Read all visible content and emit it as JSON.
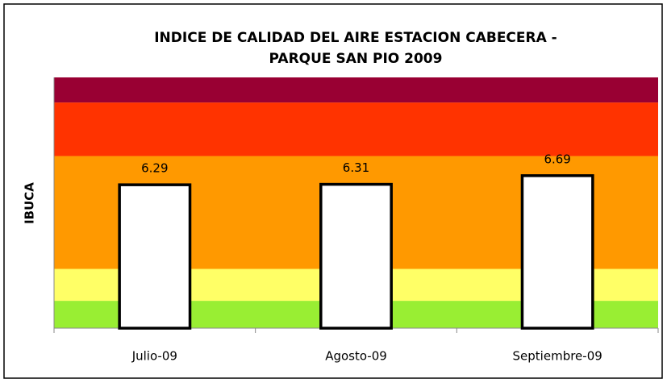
{
  "chart_data": {
    "type": "bar",
    "title": [
      "INDICE DE CALIDAD DEL AIRE ESTACION CABECERA -",
      "PARQUE SAN PIO 2009"
    ],
    "ylabel": "IBUCA",
    "categories": [
      "Julio-09",
      "Agosto-09",
      "Septiembre-09"
    ],
    "values": [
      6.29,
      6.31,
      6.69
    ],
    "color": "#ffffff",
    "ylim": [
      0,
      11
    ],
    "bands": [
      {
        "from": 0,
        "to": 1.2,
        "color": "#99ee33"
      },
      {
        "from": 1.2,
        "to": 2.6,
        "color": "#ffff66"
      },
      {
        "from": 2.6,
        "to": 7.55,
        "color": "#ff9900"
      },
      {
        "from": 7.55,
        "to": 9.9,
        "color": "#ff3300"
      },
      {
        "from": 9.9,
        "to": 11,
        "color": "#990033"
      }
    ]
  }
}
